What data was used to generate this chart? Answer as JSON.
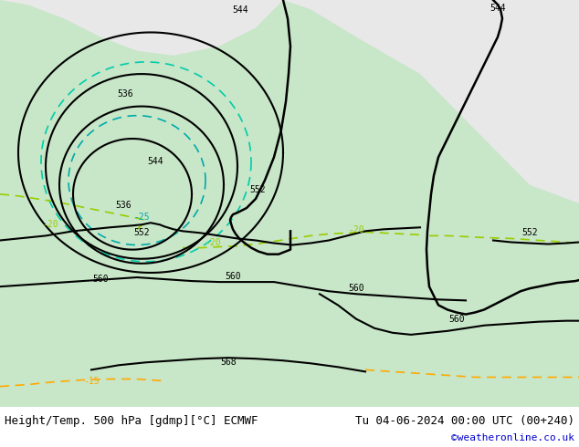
{
  "title_left": "Height/Temp. 500 hPa [gdmp][°C] ECMWF",
  "title_right": "Tu 04-06-2024 00:00 UTC (00+240)",
  "credit": "©weatheronline.co.uk",
  "bg_color": "#e8e8e8",
  "land_color": "#c8e6c8",
  "sea_color": "#e8e8e8",
  "bottom_bar_color": "#ffffff",
  "text_color": "#000000",
  "credit_color": "#0000cc",
  "title_fontsize": 9,
  "credit_fontsize": 8,
  "figsize": [
    6.34,
    4.9
  ],
  "dpi": 100
}
